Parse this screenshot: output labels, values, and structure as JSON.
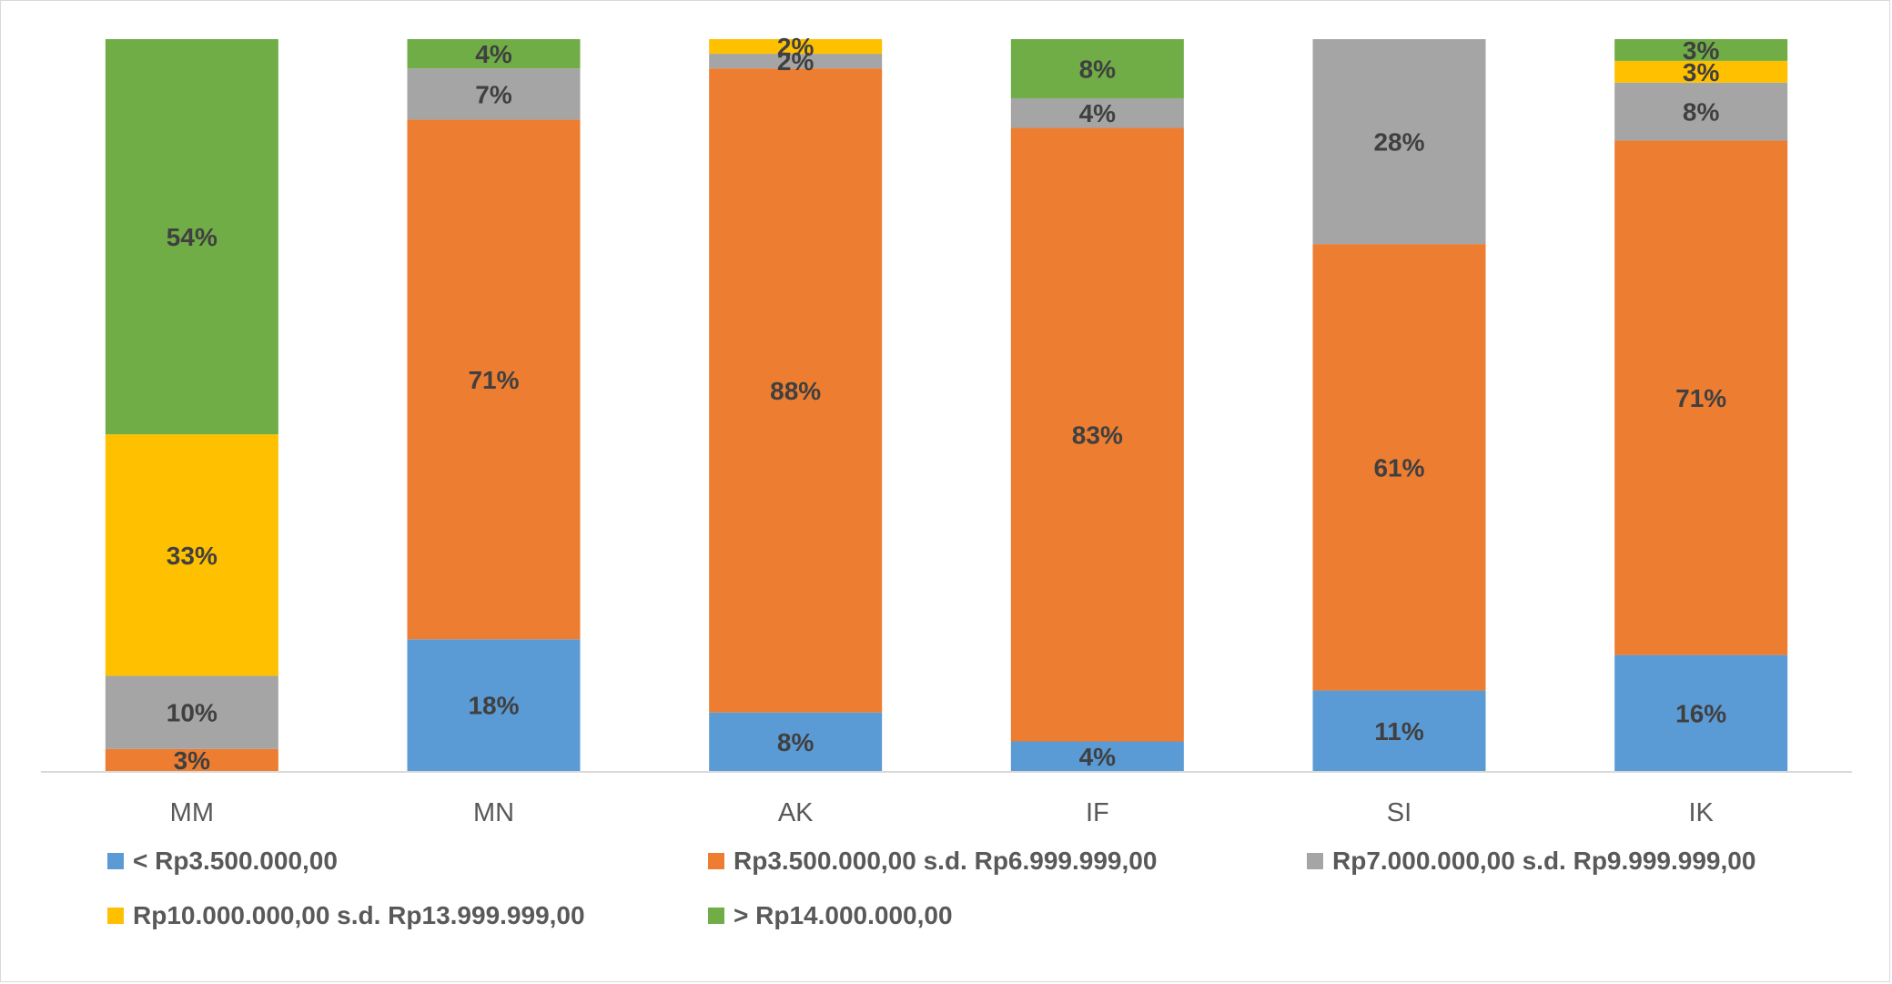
{
  "chart_data": {
    "type": "bar",
    "stacked": true,
    "percent": true,
    "categories": [
      "MM",
      "MN",
      "AK",
      "IF",
      "SI",
      "IK"
    ],
    "series": [
      {
        "name": "< Rp3.500.000,00",
        "color": "#5B9BD5",
        "values": [
          0,
          18,
          8,
          4,
          11,
          16
        ],
        "labels": [
          "",
          "18%",
          "8%",
          "4%",
          "11%",
          "16%"
        ]
      },
      {
        "name": "Rp3.500.000,00 s.d. Rp6.999.999,00",
        "color": "#ED7D31",
        "values": [
          3,
          71,
          88,
          83,
          61,
          71
        ],
        "labels": [
          "3%",
          "71%",
          "88%",
          "83%",
          "61%",
          "71%"
        ]
      },
      {
        "name": "Rp7.000.000,00 s.d. Rp9.999.999,00",
        "color": "#A5A5A5",
        "values": [
          10,
          7,
          2,
          4,
          28,
          8
        ],
        "labels": [
          "10%",
          "7%",
          "2%",
          "4%",
          "28%",
          "8%"
        ]
      },
      {
        "name": "Rp10.000.000,00 s.d. Rp13.999.999,00",
        "color": "#FFC000",
        "values": [
          33,
          0,
          2,
          0,
          0,
          3
        ],
        "labels": [
          "33%",
          "",
          "2%",
          "",
          "",
          "3%"
        ]
      },
      {
        "name": "> Rp14.000.000,00",
        "color": "#70AD47",
        "values": [
          54,
          4,
          0,
          8,
          0,
          3
        ],
        "labels": [
          "54%",
          "4%",
          "",
          "8%",
          "",
          "3%"
        ]
      }
    ],
    "ylim": [
      0,
      100
    ],
    "grid": false,
    "legend_position": "bottom"
  }
}
